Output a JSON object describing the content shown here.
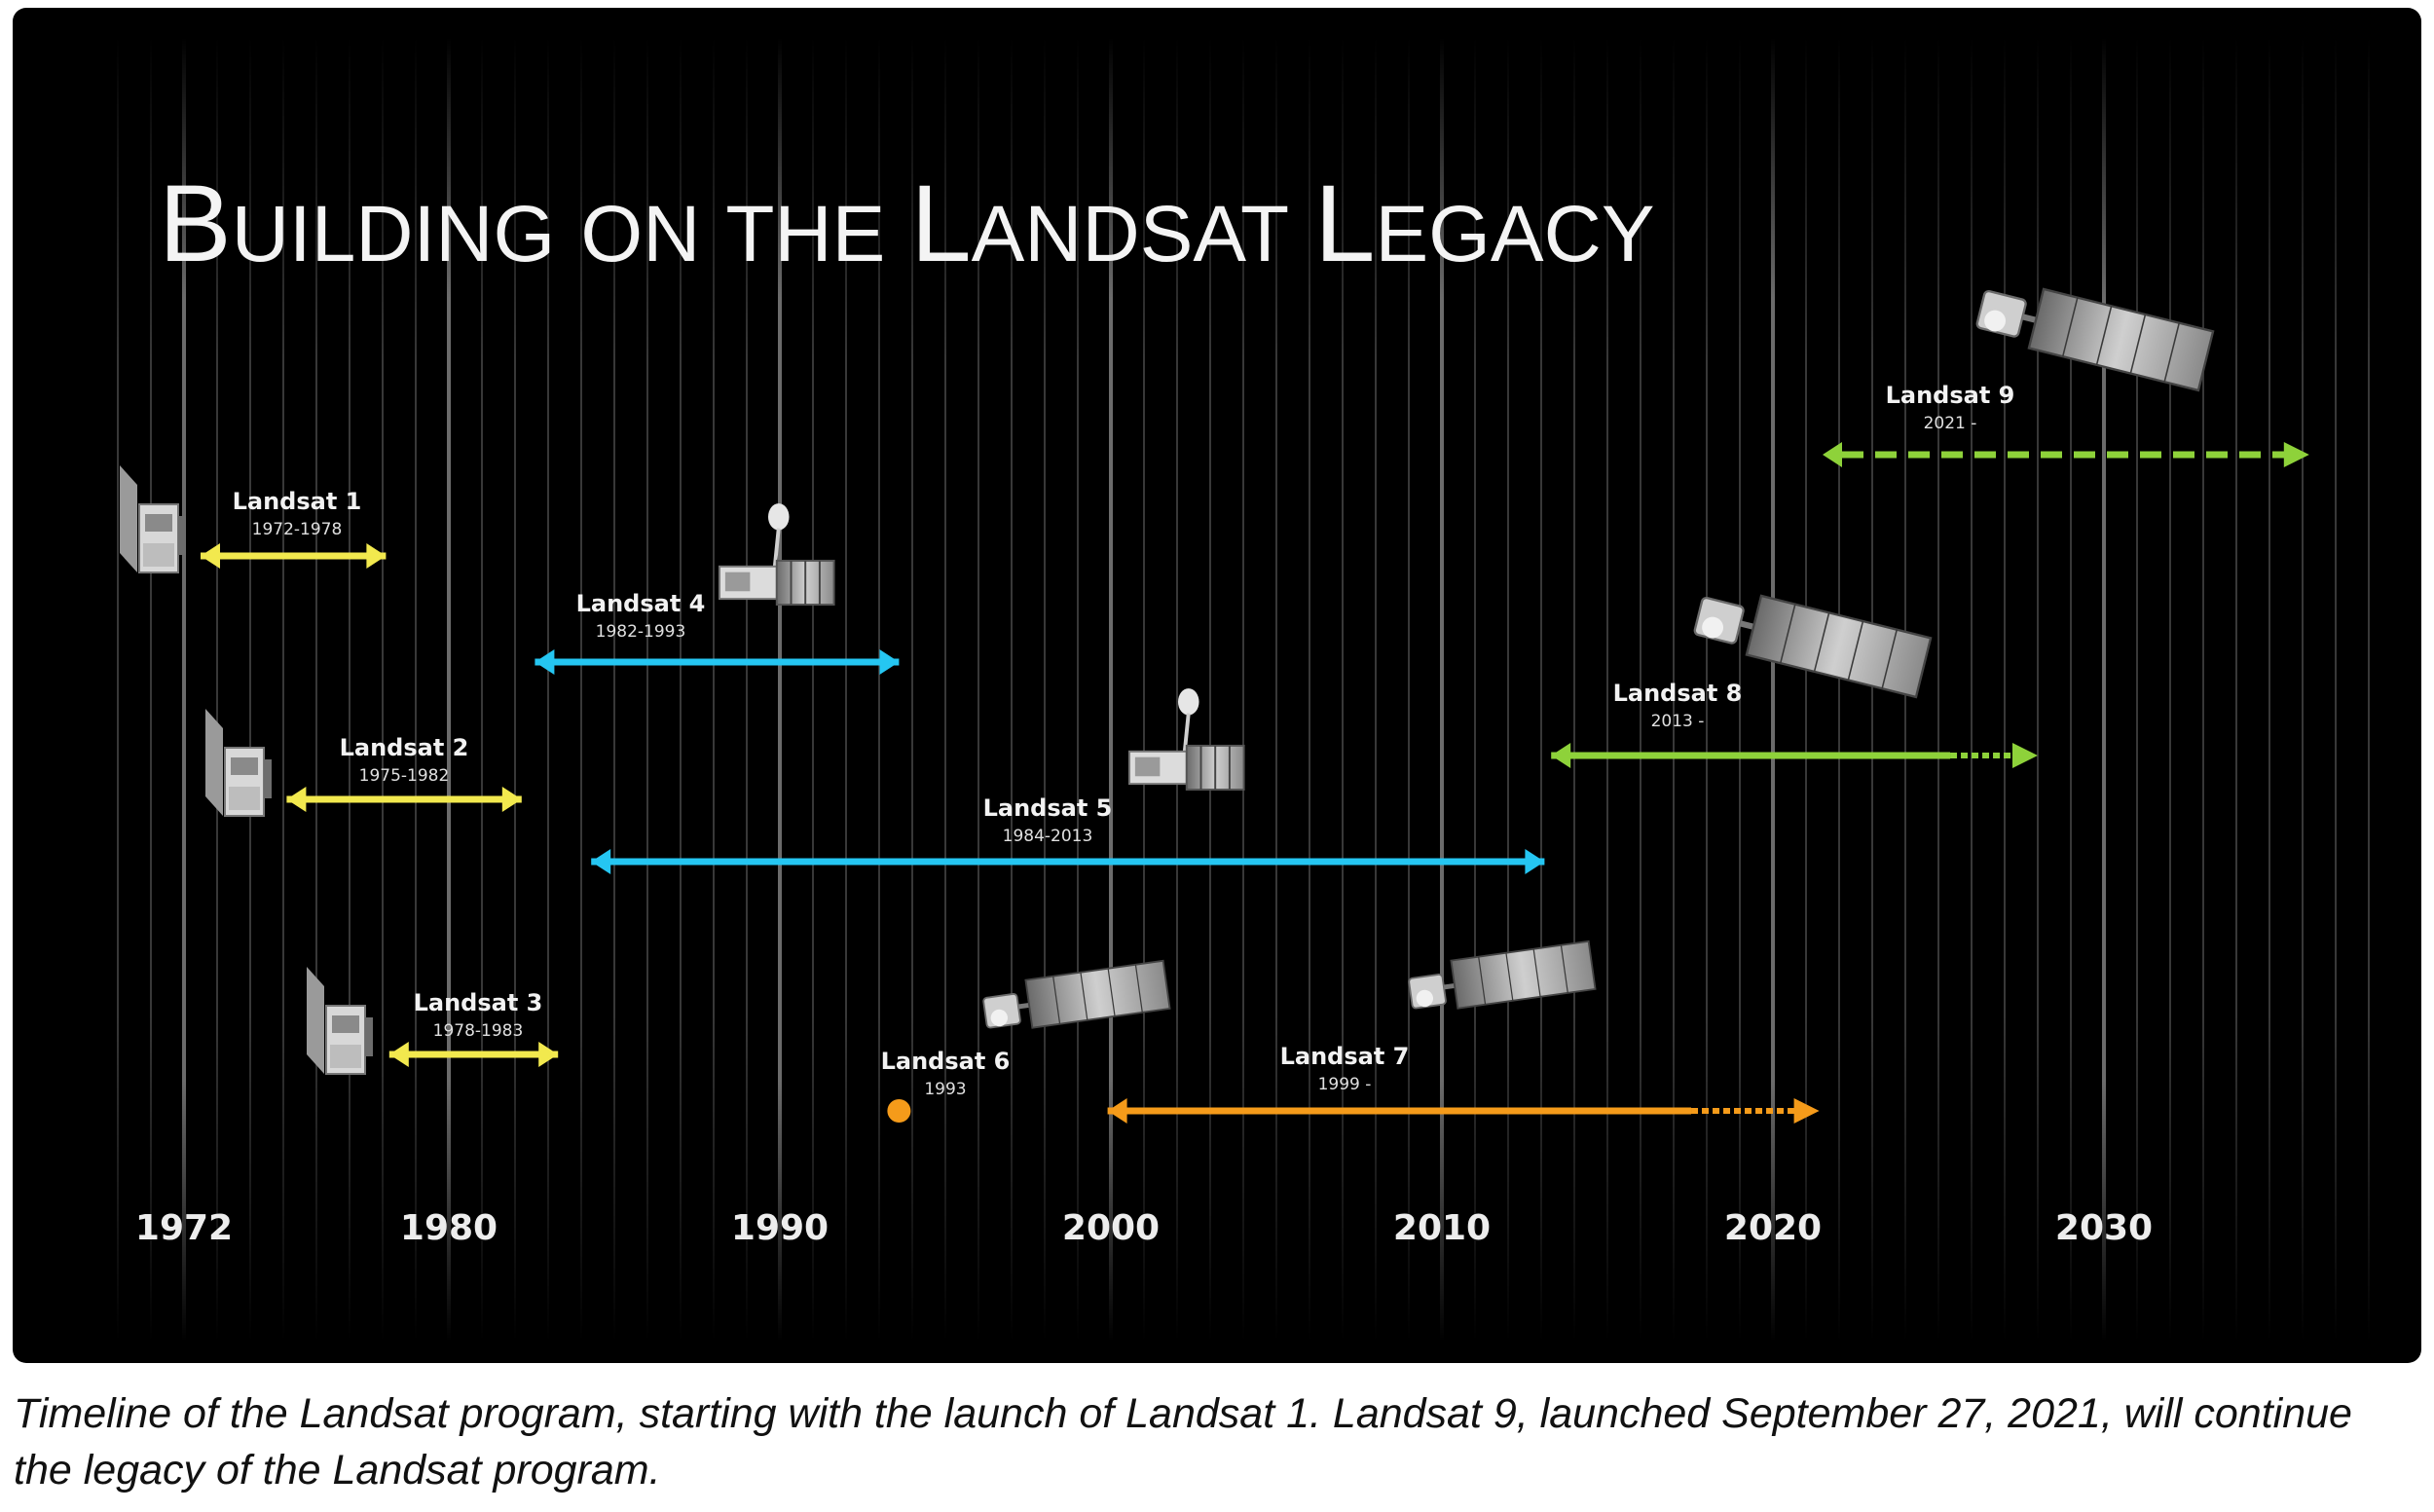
{
  "title": {
    "w1_cap": "B",
    "w1_rest": "UILDING",
    "w2": "ON",
    "w3": "THE",
    "w4_cap": "L",
    "w4_rest": "ANDSAT",
    "w5_cap": "L",
    "w5_rest": "EGACY"
  },
  "axis": {
    "ticks": [
      "1972",
      "1980",
      "1990",
      "2000",
      "2010",
      "2020",
      "2030"
    ]
  },
  "missions": [
    {
      "name": "Landsat 1",
      "years": "1972-1978",
      "start": 1972.5,
      "end": 1978.1,
      "color": "#f2e94e",
      "style": "solid"
    },
    {
      "name": "Landsat 2",
      "years": "1975-1982",
      "start": 1975.1,
      "end": 1982.2,
      "color": "#f2e94e",
      "style": "solid"
    },
    {
      "name": "Landsat 3",
      "years": "1978-1983",
      "start": 1978.2,
      "end": 1983.3,
      "color": "#f2e94e",
      "style": "solid"
    },
    {
      "name": "Landsat 4",
      "years": "1982-1993",
      "start": 1982.6,
      "end": 1993.6,
      "color": "#25c6f2",
      "style": "solid"
    },
    {
      "name": "Landsat 5",
      "years": "1984-2013",
      "start": 1984.3,
      "end": 2013.1,
      "color": "#25c6f2",
      "style": "solid"
    },
    {
      "name": "Landsat 6",
      "years": "1993",
      "start": 1993.6,
      "end": 1993.6,
      "color": "#f59b1a",
      "style": "point"
    },
    {
      "name": "Landsat 7",
      "years": "1999 -",
      "start": 1999.9,
      "end": 2021.4,
      "color": "#f59b1a",
      "style": "fading"
    },
    {
      "name": "Landsat 8",
      "years": "2013 -",
      "start": 2013.3,
      "end": 2028.0,
      "color": "#8ed23a",
      "style": "fading"
    },
    {
      "name": "Landsat 9",
      "years": "2021 -",
      "start": 2021.5,
      "end": 2036.2,
      "color": "#8ed23a",
      "style": "dashed"
    }
  ],
  "caption": "Timeline of the Landsat program, starting with the launch of Landsat 1. Landsat 9, launched September 27, 2021, will continue the legacy of the Landsat program."
}
